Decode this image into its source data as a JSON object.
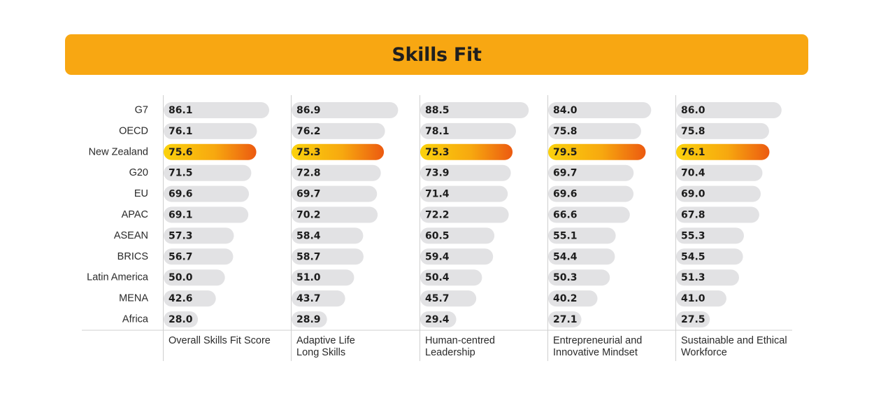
{
  "chart_data": {
    "type": "bar",
    "title": "Skills Fit",
    "categories": [
      "G7",
      "OECD",
      "New Zealand",
      "G20",
      "EU",
      "APAC",
      "ASEAN",
      "BRICS",
      "Latin America",
      "MENA",
      "Africa"
    ],
    "highlight_category": "New Zealand",
    "series": [
      {
        "name": "Overall Skills Fit Score",
        "values": [
          86.1,
          76.1,
          75.6,
          71.5,
          69.6,
          69.1,
          57.3,
          56.7,
          50.0,
          42.6,
          28.0
        ]
      },
      {
        "name": "Adaptive Life Long Skills",
        "values": [
          86.9,
          76.2,
          75.3,
          72.8,
          69.7,
          70.2,
          58.4,
          58.7,
          51.0,
          43.7,
          28.9
        ]
      },
      {
        "name": "Human-centred Leadership",
        "values": [
          88.5,
          78.1,
          75.3,
          73.9,
          71.4,
          72.2,
          60.5,
          59.4,
          50.4,
          45.7,
          29.4
        ]
      },
      {
        "name": "Entrepreneurial and Innovative Mindset",
        "values": [
          84.0,
          75.8,
          79.5,
          69.7,
          69.6,
          66.6,
          55.1,
          54.4,
          50.3,
          40.2,
          27.1
        ]
      },
      {
        "name": "Sustainable and Ethical Workforce",
        "values": [
          86.0,
          75.8,
          76.1,
          70.4,
          69.0,
          67.8,
          55.3,
          54.5,
          51.3,
          41.0,
          27.5
        ]
      }
    ],
    "colors": {
      "banner": "#f8a712",
      "bar": "#e2e2e4",
      "highlight_start": "#fbd20d",
      "highlight_end": "#ec5a10",
      "axis": "#cfcfcf"
    }
  }
}
